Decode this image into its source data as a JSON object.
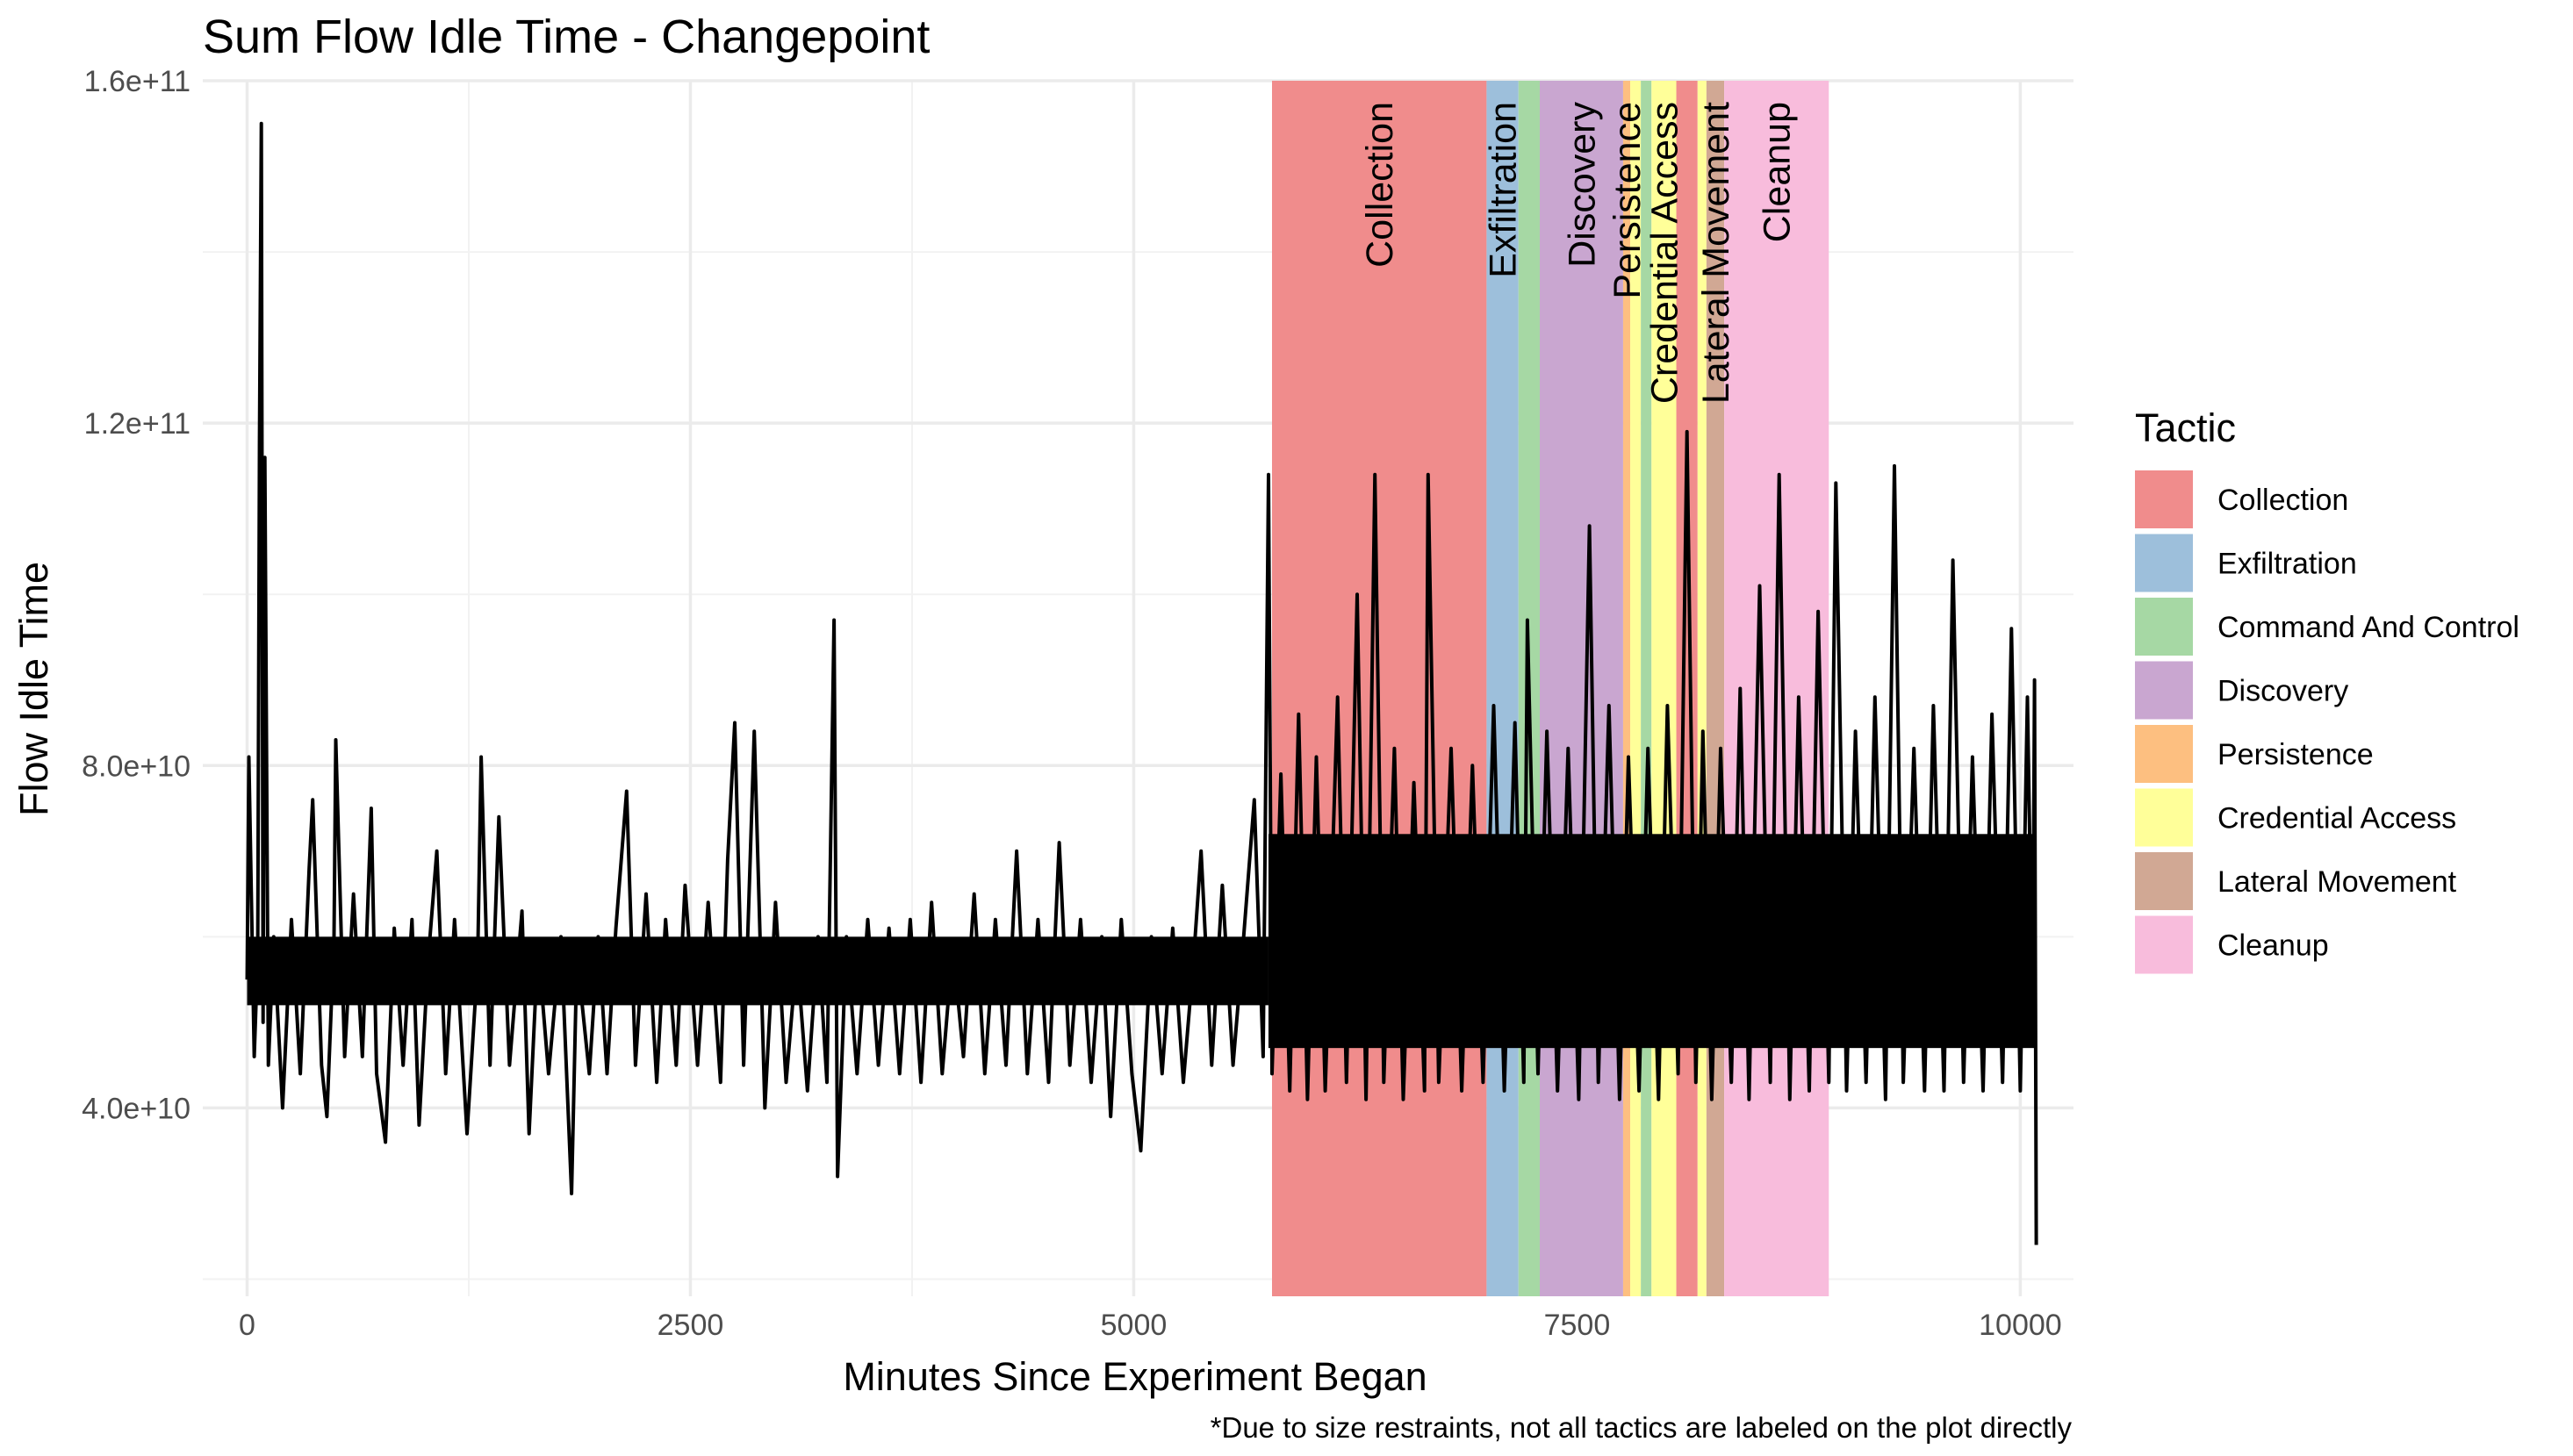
{
  "chart_data": {
    "type": "line",
    "title": "Sum Flow Idle Time - Changepoint",
    "xlabel": "Minutes Since Experiment Began",
    "ylabel": "Flow Idle Time",
    "caption": "*Due to size restraints, not all tactics are labeled on the plot directly",
    "xlim": [
      -250,
      10300
    ],
    "ylim": [
      18000000000,
      160000000000
    ],
    "x_ticks": [
      0,
      2500,
      5000,
      7500,
      10000
    ],
    "x_tick_labels": [
      "0",
      "2500",
      "5000",
      "7500",
      "10000"
    ],
    "y_ticks": [
      40000000000,
      80000000000,
      120000000000,
      160000000000
    ],
    "y_tick_labels": [
      "4.0e+10",
      "8.0e+10",
      "1.2e+11",
      "1.6e+11"
    ],
    "grid": true,
    "legend": {
      "title": "Tactic",
      "position": "right",
      "items": [
        {
          "label": "Collection",
          "color": "#F08C8C"
        },
        {
          "label": "Exfiltration",
          "color": "#9DBFDB"
        },
        {
          "label": "Command And Control",
          "color": "#A6D8A4"
        },
        {
          "label": "Discovery",
          "color": "#C9A6D0"
        },
        {
          "label": "Persistence",
          "color": "#FDBF80"
        },
        {
          "label": "Credential Access",
          "color": "#FFFF99"
        },
        {
          "label": "Lateral Movement",
          "color": "#D1A894"
        },
        {
          "label": "Cleanup",
          "color": "#F8BCDC"
        }
      ]
    },
    "bands": [
      {
        "tactic": "Collection",
        "start": 5780,
        "end": 6990,
        "label": "Collection"
      },
      {
        "tactic": "Exfiltration",
        "start": 6990,
        "end": 7170,
        "label": "Exfiltration"
      },
      {
        "tactic": "Command And Control",
        "start": 7170,
        "end": 7290,
        "label": ""
      },
      {
        "tactic": "Discovery",
        "start": 7290,
        "end": 7760,
        "label": "Discovery"
      },
      {
        "tactic": "Persistence",
        "start": 7760,
        "end": 7800,
        "label": "Persistence"
      },
      {
        "tactic": "Credential Access",
        "start": 7800,
        "end": 7860,
        "label": ""
      },
      {
        "tactic": "Command And Control",
        "start": 7860,
        "end": 7920,
        "label": ""
      },
      {
        "tactic": "Credential Access",
        "start": 7920,
        "end": 8060,
        "label": "Credential Access"
      },
      {
        "tactic": "Collection",
        "start": 8060,
        "end": 8180,
        "label": ""
      },
      {
        "tactic": "Credential Access",
        "start": 8180,
        "end": 8230,
        "label": ""
      },
      {
        "tactic": "Lateral Movement",
        "start": 8230,
        "end": 8330,
        "label": "Lateral Movement"
      },
      {
        "tactic": "Cleanup",
        "start": 8330,
        "end": 8920,
        "label": "Cleanup"
      }
    ],
    "series": [
      {
        "line_color": "#000000",
        "x_range": [
          0,
          10090
        ],
        "points": [
          {
            "x": 0,
            "y": 55000000000
          },
          {
            "x": 10,
            "y": 81000000000
          },
          {
            "x": 40,
            "y": 46000000000
          },
          {
            "x": 60,
            "y": 58000000000
          },
          {
            "x": 70,
            "y": 118000000000
          },
          {
            "x": 80,
            "y": 155000000000
          },
          {
            "x": 90,
            "y": 50000000000
          },
          {
            "x": 100,
            "y": 116000000000
          },
          {
            "x": 120,
            "y": 45000000000
          },
          {
            "x": 150,
            "y": 60000000000
          },
          {
            "x": 180,
            "y": 48000000000
          },
          {
            "x": 200,
            "y": 40000000000
          },
          {
            "x": 250,
            "y": 62000000000
          },
          {
            "x": 300,
            "y": 44000000000
          },
          {
            "x": 350,
            "y": 68000000000
          },
          {
            "x": 370,
            "y": 76000000000
          },
          {
            "x": 420,
            "y": 45000000000
          },
          {
            "x": 450,
            "y": 39000000000
          },
          {
            "x": 490,
            "y": 60000000000
          },
          {
            "x": 500,
            "y": 83000000000
          },
          {
            "x": 550,
            "y": 46000000000
          },
          {
            "x": 600,
            "y": 65000000000
          },
          {
            "x": 650,
            "y": 46000000000
          },
          {
            "x": 700,
            "y": 75000000000
          },
          {
            "x": 730,
            "y": 44000000000
          },
          {
            "x": 780,
            "y": 36000000000
          },
          {
            "x": 830,
            "y": 61000000000
          },
          {
            "x": 880,
            "y": 45000000000
          },
          {
            "x": 930,
            "y": 62000000000
          },
          {
            "x": 970,
            "y": 38000000000
          },
          {
            "x": 1020,
            "y": 57000000000
          },
          {
            "x": 1070,
            "y": 70000000000
          },
          {
            "x": 1120,
            "y": 44000000000
          },
          {
            "x": 1170,
            "y": 62000000000
          },
          {
            "x": 1240,
            "y": 37000000000
          },
          {
            "x": 1300,
            "y": 57000000000
          },
          {
            "x": 1320,
            "y": 81000000000
          },
          {
            "x": 1370,
            "y": 45000000000
          },
          {
            "x": 1420,
            "y": 74000000000
          },
          {
            "x": 1480,
            "y": 45000000000
          },
          {
            "x": 1550,
            "y": 63000000000
          },
          {
            "x": 1590,
            "y": 37000000000
          },
          {
            "x": 1640,
            "y": 59000000000
          },
          {
            "x": 1700,
            "y": 44000000000
          },
          {
            "x": 1770,
            "y": 60000000000
          },
          {
            "x": 1830,
            "y": 30000000000
          },
          {
            "x": 1860,
            "y": 58000000000
          },
          {
            "x": 1930,
            "y": 44000000000
          },
          {
            "x": 1980,
            "y": 60000000000
          },
          {
            "x": 2030,
            "y": 44000000000
          },
          {
            "x": 2080,
            "y": 61000000000
          },
          {
            "x": 2140,
            "y": 77000000000
          },
          {
            "x": 2190,
            "y": 45000000000
          },
          {
            "x": 2250,
            "y": 65000000000
          },
          {
            "x": 2310,
            "y": 43000000000
          },
          {
            "x": 2360,
            "y": 62000000000
          },
          {
            "x": 2420,
            "y": 45000000000
          },
          {
            "x": 2470,
            "y": 66000000000
          },
          {
            "x": 2540,
            "y": 45000000000
          },
          {
            "x": 2600,
            "y": 64000000000
          },
          {
            "x": 2670,
            "y": 43000000000
          },
          {
            "x": 2710,
            "y": 69000000000
          },
          {
            "x": 2750,
            "y": 85000000000
          },
          {
            "x": 2800,
            "y": 45000000000
          },
          {
            "x": 2860,
            "y": 84000000000
          },
          {
            "x": 2920,
            "y": 40000000000
          },
          {
            "x": 2980,
            "y": 64000000000
          },
          {
            "x": 3040,
            "y": 43000000000
          },
          {
            "x": 3100,
            "y": 58000000000
          },
          {
            "x": 3160,
            "y": 42000000000
          },
          {
            "x": 3220,
            "y": 60000000000
          },
          {
            "x": 3270,
            "y": 43000000000
          },
          {
            "x": 3310,
            "y": 97000000000
          },
          {
            "x": 3330,
            "y": 32000000000
          },
          {
            "x": 3380,
            "y": 60000000000
          },
          {
            "x": 3440,
            "y": 44000000000
          },
          {
            "x": 3500,
            "y": 62000000000
          },
          {
            "x": 3560,
            "y": 45000000000
          },
          {
            "x": 3620,
            "y": 61000000000
          },
          {
            "x": 3680,
            "y": 44000000000
          },
          {
            "x": 3740,
            "y": 62000000000
          },
          {
            "x": 3800,
            "y": 43000000000
          },
          {
            "x": 3860,
            "y": 64000000000
          },
          {
            "x": 3920,
            "y": 44000000000
          },
          {
            "x": 3980,
            "y": 59000000000
          },
          {
            "x": 4040,
            "y": 46000000000
          },
          {
            "x": 4100,
            "y": 65000000000
          },
          {
            "x": 4160,
            "y": 44000000000
          },
          {
            "x": 4220,
            "y": 62000000000
          },
          {
            "x": 4280,
            "y": 45000000000
          },
          {
            "x": 4340,
            "y": 70000000000
          },
          {
            "x": 4400,
            "y": 44000000000
          },
          {
            "x": 4460,
            "y": 62000000000
          },
          {
            "x": 4520,
            "y": 43000000000
          },
          {
            "x": 4580,
            "y": 71000000000
          },
          {
            "x": 4640,
            "y": 45000000000
          },
          {
            "x": 4700,
            "y": 62000000000
          },
          {
            "x": 4760,
            "y": 43000000000
          },
          {
            "x": 4820,
            "y": 60000000000
          },
          {
            "x": 4870,
            "y": 39000000000
          },
          {
            "x": 4930,
            "y": 62000000000
          },
          {
            "x": 4990,
            "y": 44000000000
          },
          {
            "x": 5040,
            "y": 35000000000
          },
          {
            "x": 5100,
            "y": 60000000000
          },
          {
            "x": 5160,
            "y": 44000000000
          },
          {
            "x": 5220,
            "y": 61000000000
          },
          {
            "x": 5280,
            "y": 43000000000
          },
          {
            "x": 5340,
            "y": 58000000000
          },
          {
            "x": 5380,
            "y": 70000000000
          },
          {
            "x": 5440,
            "y": 45000000000
          },
          {
            "x": 5500,
            "y": 66000000000
          },
          {
            "x": 5560,
            "y": 45000000000
          },
          {
            "x": 5620,
            "y": 60000000000
          },
          {
            "x": 5680,
            "y": 76000000000
          },
          {
            "x": 5730,
            "y": 46000000000
          },
          {
            "x": 5760,
            "y": 114000000000
          },
          {
            "x": 5780,
            "y": 44000000000
          },
          {
            "x": 5830,
            "y": 79000000000
          },
          {
            "x": 5880,
            "y": 42000000000
          },
          {
            "x": 5930,
            "y": 86000000000
          },
          {
            "x": 5980,
            "y": 41000000000
          },
          {
            "x": 6030,
            "y": 81000000000
          },
          {
            "x": 6080,
            "y": 42000000000
          },
          {
            "x": 6150,
            "y": 88000000000
          },
          {
            "x": 6200,
            "y": 43000000000
          },
          {
            "x": 6260,
            "y": 100000000000
          },
          {
            "x": 6310,
            "y": 41000000000
          },
          {
            "x": 6360,
            "y": 114000000000
          },
          {
            "x": 6410,
            "y": 43000000000
          },
          {
            "x": 6470,
            "y": 82000000000
          },
          {
            "x": 6520,
            "y": 41000000000
          },
          {
            "x": 6580,
            "y": 78000000000
          },
          {
            "x": 6640,
            "y": 42000000000
          },
          {
            "x": 6660,
            "y": 114000000000
          },
          {
            "x": 6720,
            "y": 43000000000
          },
          {
            "x": 6790,
            "y": 82000000000
          },
          {
            "x": 6850,
            "y": 42000000000
          },
          {
            "x": 6910,
            "y": 80000000000
          },
          {
            "x": 6970,
            "y": 43000000000
          },
          {
            "x": 7030,
            "y": 87000000000
          },
          {
            "x": 7090,
            "y": 42000000000
          },
          {
            "x": 7150,
            "y": 85000000000
          },
          {
            "x": 7200,
            "y": 43000000000
          },
          {
            "x": 7220,
            "y": 97000000000
          },
          {
            "x": 7280,
            "y": 44000000000
          },
          {
            "x": 7330,
            "y": 84000000000
          },
          {
            "x": 7390,
            "y": 42000000000
          },
          {
            "x": 7450,
            "y": 82000000000
          },
          {
            "x": 7510,
            "y": 41000000000
          },
          {
            "x": 7570,
            "y": 108000000000
          },
          {
            "x": 7620,
            "y": 43000000000
          },
          {
            "x": 7680,
            "y": 87000000000
          },
          {
            "x": 7740,
            "y": 41000000000
          },
          {
            "x": 7790,
            "y": 81000000000
          },
          {
            "x": 7850,
            "y": 42000000000
          },
          {
            "x": 7900,
            "y": 82000000000
          },
          {
            "x": 7960,
            "y": 41000000000
          },
          {
            "x": 8010,
            "y": 87000000000
          },
          {
            "x": 8070,
            "y": 44000000000
          },
          {
            "x": 8120,
            "y": 119000000000
          },
          {
            "x": 8170,
            "y": 43000000000
          },
          {
            "x": 8210,
            "y": 84000000000
          },
          {
            "x": 8260,
            "y": 41000000000
          },
          {
            "x": 8310,
            "y": 82000000000
          },
          {
            "x": 8370,
            "y": 43000000000
          },
          {
            "x": 8420,
            "y": 89000000000
          },
          {
            "x": 8470,
            "y": 41000000000
          },
          {
            "x": 8530,
            "y": 101000000000
          },
          {
            "x": 8590,
            "y": 43000000000
          },
          {
            "x": 8640,
            "y": 114000000000
          },
          {
            "x": 8700,
            "y": 41000000000
          },
          {
            "x": 8750,
            "y": 88000000000
          },
          {
            "x": 8810,
            "y": 42000000000
          },
          {
            "x": 8860,
            "y": 98000000000
          },
          {
            "x": 8920,
            "y": 43000000000
          },
          {
            "x": 8960,
            "y": 113000000000
          },
          {
            "x": 9020,
            "y": 42000000000
          },
          {
            "x": 9070,
            "y": 84000000000
          },
          {
            "x": 9130,
            "y": 43000000000
          },
          {
            "x": 9180,
            "y": 88000000000
          },
          {
            "x": 9240,
            "y": 41000000000
          },
          {
            "x": 9290,
            "y": 115000000000
          },
          {
            "x": 9340,
            "y": 43000000000
          },
          {
            "x": 9400,
            "y": 82000000000
          },
          {
            "x": 9460,
            "y": 42000000000
          },
          {
            "x": 9510,
            "y": 87000000000
          },
          {
            "x": 9570,
            "y": 42000000000
          },
          {
            "x": 9620,
            "y": 104000000000
          },
          {
            "x": 9680,
            "y": 43000000000
          },
          {
            "x": 9730,
            "y": 81000000000
          },
          {
            "x": 9790,
            "y": 42000000000
          },
          {
            "x": 9840,
            "y": 86000000000
          },
          {
            "x": 9900,
            "y": 43000000000
          },
          {
            "x": 9950,
            "y": 96000000000
          },
          {
            "x": 10000,
            "y": 42000000000
          },
          {
            "x": 10040,
            "y": 88000000000
          },
          {
            "x": 10070,
            "y": 50000000000
          },
          {
            "x": 10080,
            "y": 90000000000
          },
          {
            "x": 10090,
            "y": 24000000000
          }
        ]
      }
    ]
  }
}
